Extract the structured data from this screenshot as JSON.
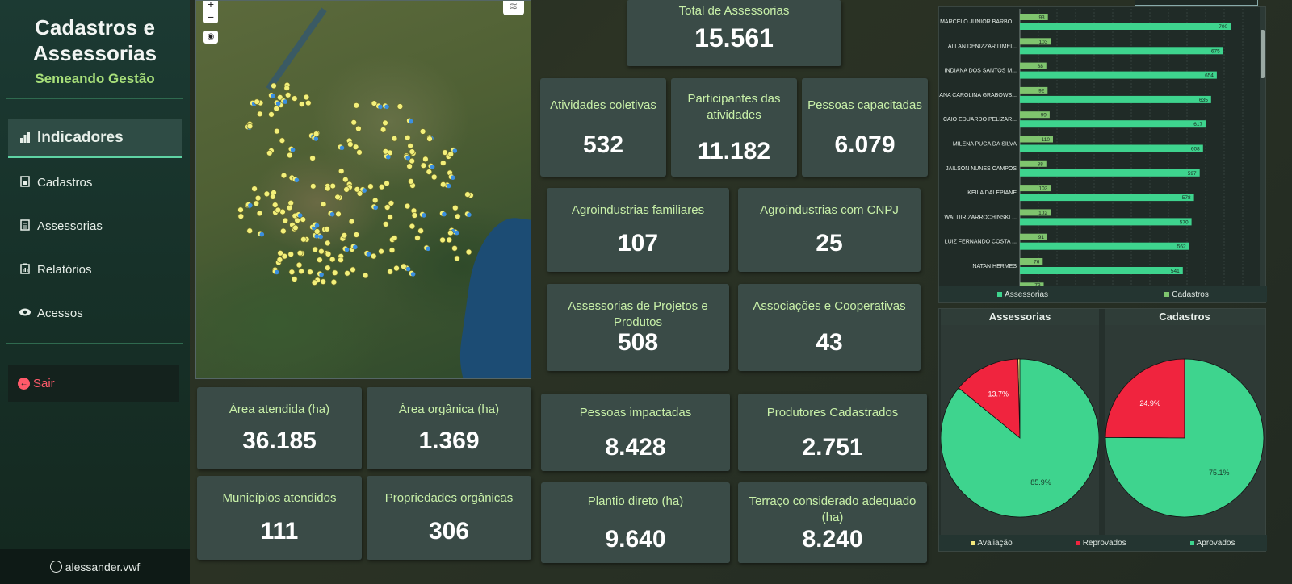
{
  "sidebar": {
    "title": "Cadastros e Assessorias",
    "subtitle": "Semeando Gestão",
    "items": [
      {
        "label": "Indicadores",
        "icon": "bar-chart-icon",
        "active": true
      },
      {
        "label": "Cadastros",
        "icon": "document-icon",
        "active": false
      },
      {
        "label": "Assessorias",
        "icon": "list-icon",
        "active": false
      },
      {
        "label": "Relatórios",
        "icon": "clipboard-chart-icon",
        "active": false
      },
      {
        "label": "Acessos",
        "icon": "eye-icon",
        "active": false
      }
    ],
    "logout_label": "Sair",
    "user": "alessander.vwf"
  },
  "map": {
    "zoom_in": "+",
    "zoom_out": "−"
  },
  "metrics": {
    "total_assessorias": {
      "label": "Total de Assessorias",
      "value": "15.561"
    },
    "atividades_coletivas": {
      "label": "Atividades coletivas",
      "value": "532"
    },
    "participantes": {
      "label": "Participantes das atividades",
      "value": "11.182"
    },
    "pessoas_capacitadas": {
      "label": "Pessoas capacitadas",
      "value": "6.079"
    },
    "agro_familiares": {
      "label": "Agroindustrias familiares",
      "value": "107"
    },
    "agro_cnpj": {
      "label": "Agroindustrias com CNPJ",
      "value": "25"
    },
    "assessorias_projetos": {
      "label": "Assessorias de Projetos e Produtos",
      "value": "508"
    },
    "associacoes": {
      "label": "Associações e Cooperativas",
      "value": "43"
    },
    "area_atendida": {
      "label": "Área atendida (ha)",
      "value": "36.185"
    },
    "area_organica": {
      "label": "Área orgânica (ha)",
      "value": "1.369"
    },
    "municipios": {
      "label": "Municípios atendidos",
      "value": "111"
    },
    "propriedades_organicas": {
      "label": "Propriedades orgânicas",
      "value": "306"
    },
    "pessoas_impactadas": {
      "label": "Pessoas impactadas",
      "value": "8.428"
    },
    "produtores": {
      "label": "Produtores Cadastrados",
      "value": "2.751"
    },
    "plantio_direto": {
      "label": "Plantio direto (ha)",
      "value": "9.640"
    },
    "terraco": {
      "label": "Terraço considerado adequado (ha)",
      "value": "8.240"
    }
  },
  "chart_data": [
    {
      "type": "bar",
      "orientation": "horizontal",
      "categories": [
        "MARCELO JUNIOR BARBO...",
        "ALLAN DENIZZAR LIMEI...",
        "INDIANA DOS SANTOS M...",
        "ANA CAROLINA GRABOWS...",
        "CAIO EDUARDO PELIZAR...",
        "MILENA PUGA DA SILVA",
        "JAILSON NUNES CAMPOS",
        "KEILA DALEPIANE",
        "WALDIR ZARROCHINSKI ...",
        "LUIZ FERNANDO COSTA ...",
        "NATAN HERMES"
      ],
      "series": [
        {
          "name": "Assessorias",
          "color": "#3ed48e",
          "values": [
            700,
            675,
            654,
            635,
            617,
            608,
            597,
            578,
            570,
            562,
            541
          ]
        },
        {
          "name": "Cadastros",
          "color": "#7fc46e",
          "values": [
            93,
            103,
            88,
            92,
            99,
            110,
            88,
            103,
            102,
            91,
            76
          ]
        }
      ],
      "xlim": [
        0,
        740
      ],
      "legend_position": "bottom",
      "partial_next_value": "79"
    },
    {
      "type": "pie",
      "title": "Assessorias",
      "labels": [
        "Avaliação",
        "Reprovados",
        "Aprovados"
      ],
      "values": [
        0.4,
        13.7,
        85.9
      ],
      "display_labels": [
        "",
        "13.7%",
        "85.9%"
      ],
      "colors": [
        "#f3e87c",
        "#f0243e",
        "#3ed48e"
      ]
    },
    {
      "type": "pie",
      "title": "Cadastros",
      "labels": [
        "Avaliação",
        "Reprovados",
        "Aprovados"
      ],
      "values": [
        0,
        24.9,
        75.1
      ],
      "display_labels": [
        "",
        "24.9%",
        "75.1%"
      ],
      "colors": [
        "#f3e87c",
        "#f0243e",
        "#3ed48e"
      ]
    }
  ],
  "pie_legend": [
    {
      "label": "Avaliação",
      "color": "#f3e87c"
    },
    {
      "label": "Reprovados",
      "color": "#f0243e"
    },
    {
      "label": "Aprovados",
      "color": "#3ed48e"
    }
  ]
}
